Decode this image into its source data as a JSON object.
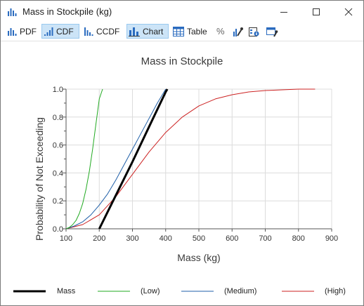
{
  "window": {
    "title": "Mass in Stockpile (kg)",
    "min_icon": "minimize-icon",
    "max_icon": "maximize-icon",
    "close_icon": "close-icon"
  },
  "toolbar": {
    "pdf_label": "PDF",
    "cdf_label": "CDF",
    "ccdf_label": "CCDF",
    "chart_label": "Chart",
    "table_label": "Table",
    "percent_label": "%",
    "active_tabs": [
      "CDF",
      "Chart"
    ]
  },
  "colors": {
    "mass": "#000000",
    "low": "#22aa22",
    "medium": "#1f5fa8",
    "high": "#cc2222",
    "active_bg": "#cce4f7",
    "icon_blue": "#2a6bbf"
  },
  "chart_data": {
    "type": "line",
    "title": "Mass in Stockpile",
    "xlabel": "Mass (kg)",
    "ylabel": "Probability of Not Exceeding",
    "xlim": [
      100,
      900
    ],
    "ylim": [
      0,
      1
    ],
    "x_ticks": [
      "100",
      "200",
      "300",
      "400",
      "500",
      "600",
      "700",
      "800",
      "900"
    ],
    "y_ticks": [
      "0.0",
      "0.2",
      "0.4",
      "0.6",
      "0.8",
      "1.0"
    ],
    "grid": true,
    "legend_position": "bottom",
    "series": [
      {
        "name": "Mass",
        "color": "#000000",
        "width": 3,
        "x": [
          200,
          250,
          300,
          350,
          400,
          405
        ],
        "y": [
          0.0,
          0.24,
          0.48,
          0.73,
          0.98,
          1.0
        ]
      },
      {
        "name": "(Low)",
        "color": "#22aa22",
        "width": 1,
        "x": [
          100,
          110,
          120,
          130,
          140,
          150,
          160,
          170,
          180,
          190,
          200,
          210
        ],
        "y": [
          0.0,
          0.01,
          0.03,
          0.06,
          0.11,
          0.18,
          0.28,
          0.41,
          0.57,
          0.75,
          0.93,
          1.0
        ]
      },
      {
        "name": "(Medium)",
        "color": "#1f5fa8",
        "width": 1,
        "x": [
          100,
          125,
          150,
          175,
          200,
          225,
          250,
          275,
          300,
          325,
          350,
          375,
          400
        ],
        "y": [
          0.0,
          0.02,
          0.05,
          0.1,
          0.17,
          0.25,
          0.35,
          0.46,
          0.57,
          0.68,
          0.79,
          0.9,
          1.0
        ]
      },
      {
        "name": "(High)",
        "color": "#cc2222",
        "width": 1,
        "x": [
          100,
          150,
          200,
          250,
          300,
          350,
          400,
          450,
          500,
          550,
          600,
          650,
          700,
          750,
          800,
          850
        ],
        "y": [
          0.0,
          0.03,
          0.1,
          0.23,
          0.39,
          0.55,
          0.69,
          0.8,
          0.88,
          0.93,
          0.96,
          0.98,
          0.99,
          0.995,
          1.0,
          1.0
        ]
      }
    ]
  }
}
